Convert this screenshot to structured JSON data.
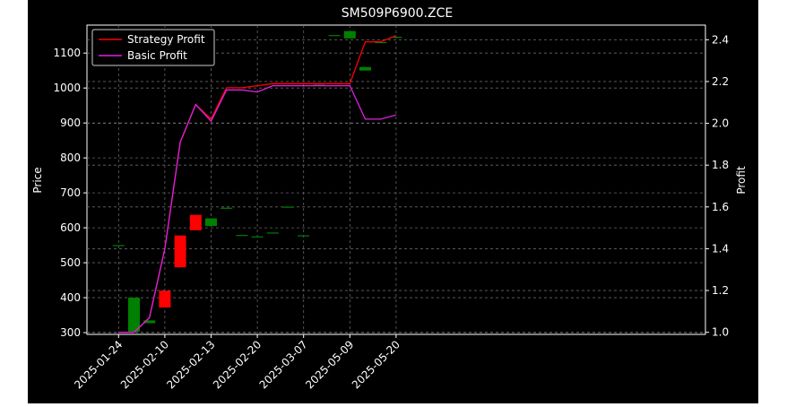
{
  "chart_data": {
    "type": "candlestick",
    "title": "SM509P6900.ZCE",
    "ylabel_left": "Price",
    "ylabel_right": "Profit",
    "ylim_left": [
      295,
      1180
    ],
    "ylim_right": [
      0.99,
      2.47
    ],
    "yticks_left": [
      300,
      400,
      500,
      600,
      700,
      800,
      900,
      1000,
      1100
    ],
    "yticks_right": [
      1.0,
      1.2,
      1.4,
      1.6,
      1.8,
      2.0,
      2.2,
      2.4
    ],
    "x_tick_labels": [
      "2025-01-24",
      "2025-02-10",
      "2025-02-13",
      "2025-02-20",
      "2025-03-07",
      "2025-05-09",
      "2025-05-20"
    ],
    "x_tick_index": [
      0,
      3,
      6,
      9,
      12,
      15,
      18
    ],
    "grid": true,
    "legend_position": "top-left",
    "legend": [
      {
        "name": "Strategy Profit",
        "color": "#ff0000"
      },
      {
        "name": "Basic Profit",
        "color": "#e020e0"
      }
    ],
    "up_color": "#008000",
    "down_color": "#ff0000",
    "candles": [
      {
        "i": 0,
        "open": 549,
        "close": 549
      },
      {
        "i": 1,
        "open": 303,
        "close": 400
      },
      {
        "i": 2,
        "open": 327,
        "close": 335
      },
      {
        "i": 3,
        "open": 420,
        "close": 372
      },
      {
        "i": 4,
        "open": 578,
        "close": 487
      },
      {
        "i": 5,
        "open": 637,
        "close": 593
      },
      {
        "i": 6,
        "open": 605,
        "close": 627
      },
      {
        "i": 7,
        "open": 656,
        "close": 656
      },
      {
        "i": 8,
        "open": 578,
        "close": 578
      },
      {
        "i": 9,
        "open": 574,
        "close": 574
      },
      {
        "i": 10,
        "open": 585,
        "close": 585
      },
      {
        "i": 11,
        "open": 659,
        "close": 659
      },
      {
        "i": 12,
        "open": 577,
        "close": 577
      },
      {
        "i": 13,
        "open": 1008,
        "close": 1008
      },
      {
        "i": 14,
        "open": 1150,
        "close": 1150
      },
      {
        "i": 15,
        "open": 1142,
        "close": 1163
      },
      {
        "i": 16,
        "open": 1050,
        "close": 1060
      },
      {
        "i": 17,
        "open": 1130,
        "close": 1130
      },
      {
        "i": 18,
        "open": 1145,
        "close": 1145
      }
    ],
    "series": [
      {
        "name": "Strategy Profit",
        "x": [
          0,
          1,
          2,
          3,
          4,
          5,
          6,
          7,
          8,
          9,
          10,
          11,
          12,
          13,
          14,
          15,
          16,
          17,
          18
        ],
        "values": [
          1.0,
          1.0,
          1.07,
          1.4,
          1.91,
          2.09,
          2.02,
          2.17,
          2.17,
          2.18,
          2.19,
          2.19,
          2.19,
          2.19,
          2.19,
          2.19,
          2.39,
          2.39,
          2.42
        ]
      },
      {
        "name": "Basic Profit",
        "x": [
          0,
          1,
          2,
          3,
          4,
          5,
          6,
          7,
          8,
          9,
          10,
          11,
          12,
          13,
          14,
          15,
          16,
          17,
          18
        ],
        "values": [
          1.0,
          1.0,
          1.07,
          1.4,
          1.91,
          2.09,
          2.01,
          2.16,
          2.16,
          2.15,
          2.18,
          2.18,
          2.18,
          2.18,
          2.18,
          2.18,
          2.02,
          2.02,
          2.04
        ]
      }
    ]
  }
}
